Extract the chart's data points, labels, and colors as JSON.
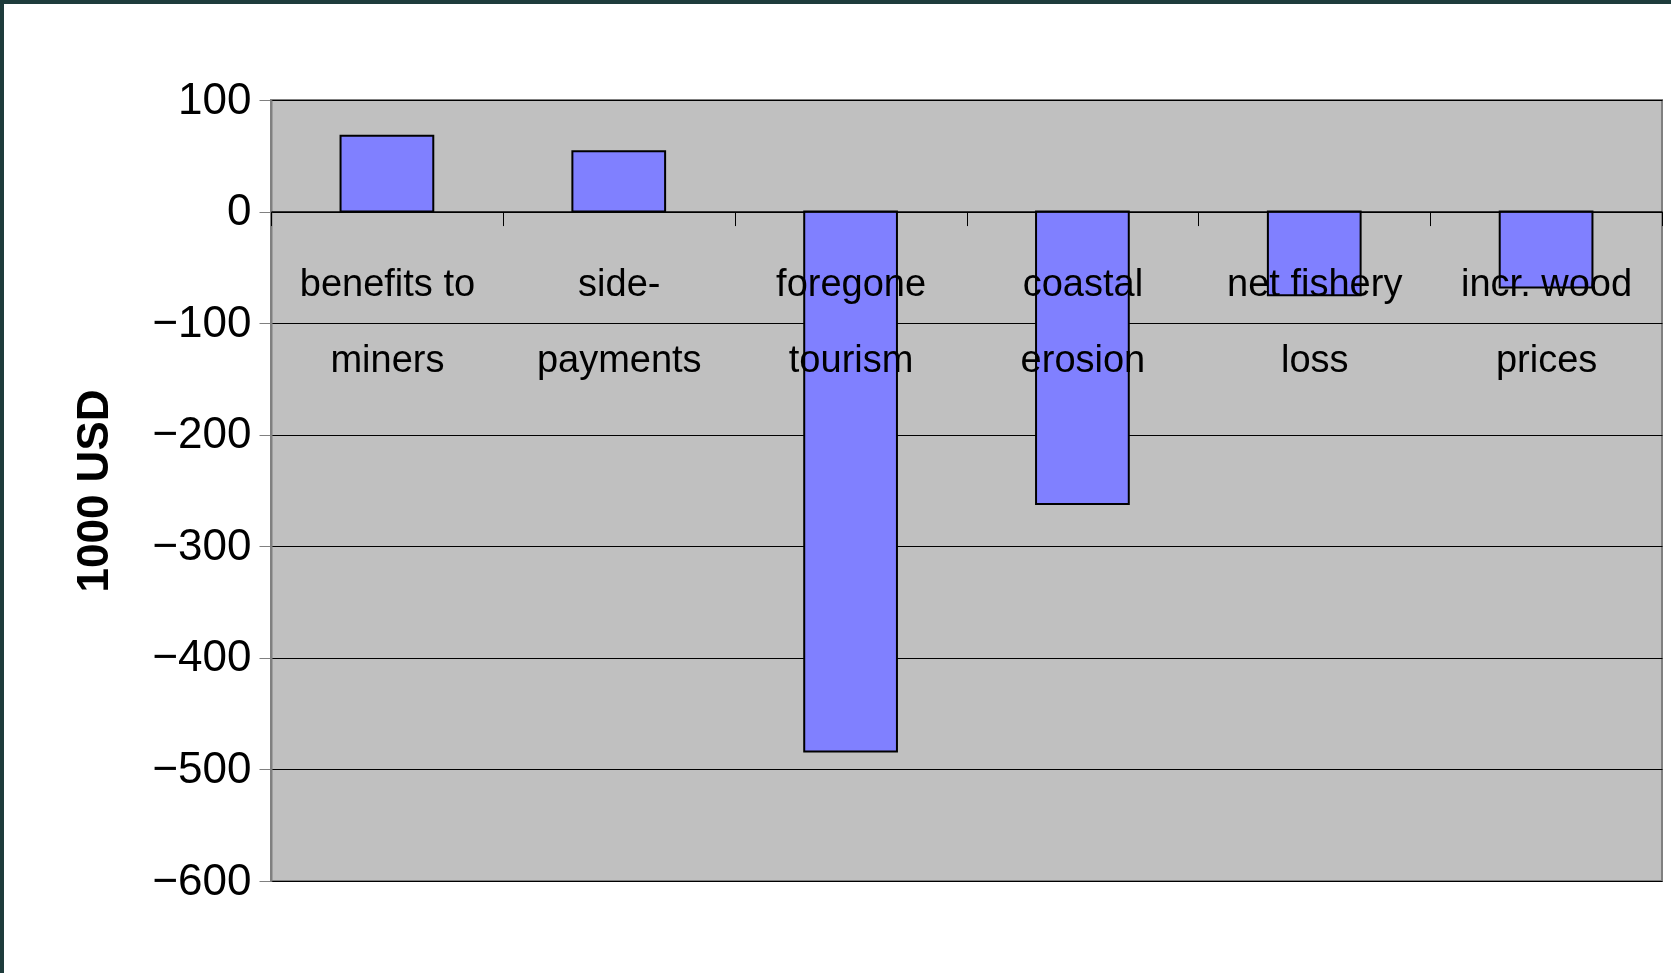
{
  "chart_data": {
    "type": "bar",
    "ylabel": "1000 USD",
    "categories": [
      "benefits to miners",
      "side-payments",
      "foregone tourism",
      "coastal erosion",
      "net fishery loss",
      "incr. wood prices"
    ],
    "values": [
      68,
      54,
      -484,
      -262,
      -75,
      -68
    ],
    "color": "#8080ff",
    "ylim": [
      -600,
      100
    ],
    "yticks": [
      -600,
      -500,
      -400,
      -300,
      -200,
      -100,
      0,
      100
    ],
    "grid": "y"
  }
}
